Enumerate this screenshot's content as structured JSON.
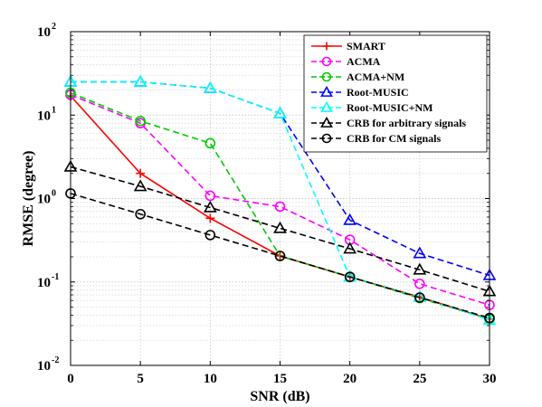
{
  "chart_data": {
    "type": "line",
    "xlabel": "SNR (dB)",
    "ylabel": "RMSE (degree)",
    "xlim": [
      0,
      30
    ],
    "ylim": [
      0.01,
      100
    ],
    "yscale": "log",
    "grid": true,
    "legend_position": "top-right",
    "x": [
      0,
      5,
      10,
      15,
      20,
      25,
      30
    ],
    "x_tick_labels": [
      "0",
      "5",
      "10",
      "15",
      "20",
      "25",
      "30"
    ],
    "y_ticks": [
      {
        "value": 100,
        "base": "10",
        "exp": "2"
      },
      {
        "value": 10,
        "base": "10",
        "exp": "1"
      },
      {
        "value": 1,
        "base": "10",
        "exp": "0"
      },
      {
        "value": 0.1,
        "base": "10",
        "exp": "-1"
      },
      {
        "value": 0.01,
        "base": "10",
        "exp": "-2"
      }
    ],
    "series": [
      {
        "name": "SMART",
        "color": "#ff0000",
        "marker": "plus",
        "dash": "solid",
        "values": [
          17,
          2.0,
          0.58,
          0.205,
          0.115,
          0.066,
          0.036
        ]
      },
      {
        "name": "ACMA",
        "color": "#ff00ff",
        "marker": "circle",
        "dash": "dashed",
        "values": [
          17.5,
          8.0,
          1.08,
          0.8,
          0.32,
          0.095,
          0.053
        ]
      },
      {
        "name": "ACMA+NM",
        "color": "#00cc00",
        "marker": "circle",
        "dash": "dashed",
        "values": [
          18.5,
          8.5,
          4.6,
          0.205,
          0.115,
          0.064,
          0.036
        ]
      },
      {
        "name": "Root-MUSIC",
        "color": "#0000ff",
        "marker": "triangle",
        "dash": "dashed",
        "values": [
          25,
          25,
          21,
          10.5,
          0.55,
          0.22,
          0.12
        ]
      },
      {
        "name": "Root-MUSIC+NM",
        "color": "#00ffff",
        "marker": "triangle",
        "dash": "dashed",
        "values": [
          25,
          25,
          21,
          10.5,
          0.115,
          0.066,
          0.035
        ]
      },
      {
        "name": "CRB for arbitrary signals",
        "color": "#000000",
        "marker": "triangle",
        "dash": "dashed",
        "values": [
          2.4,
          1.4,
          0.78,
          0.44,
          0.25,
          0.14,
          0.077
        ]
      },
      {
        "name": "CRB for CM signals",
        "color": "#000000",
        "marker": "circle",
        "dash": "dashed",
        "values": [
          1.15,
          0.65,
          0.365,
          0.205,
          0.115,
          0.065,
          0.037
        ]
      }
    ]
  }
}
